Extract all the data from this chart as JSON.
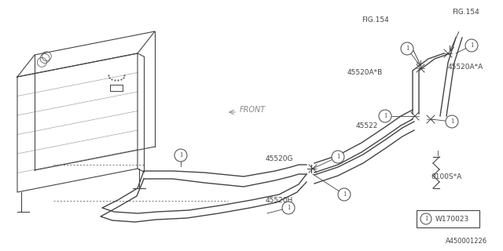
{
  "bg_color": "#ffffff",
  "line_color": "#444444",
  "fig_width": 6.4,
  "fig_height": 3.2,
  "dpi": 100,
  "bottom_label": "A450001226",
  "part_ref": "W170023",
  "fig154_label_1": "FIG.154",
  "fig154_label_2": "FIG.154",
  "label_45520AB": "45520A*B",
  "label_45520AA": "45520A*A",
  "label_45522": "45522",
  "label_45520G": "45520G",
  "label_45520H": "45520H",
  "label_0100SA": "0100S*A",
  "label_FRONT": "FRONT"
}
